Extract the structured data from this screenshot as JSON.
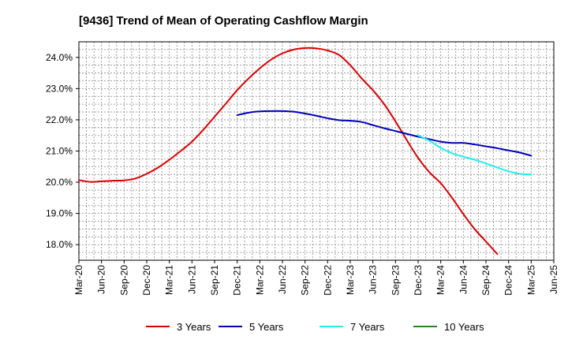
{
  "chart_data": {
    "type": "line",
    "title": "[9436]  Trend of Mean of Operating Cashflow Margin",
    "xlabel": "",
    "ylabel": "",
    "ylim": [
      17.5,
      24.5
    ],
    "yticks": [
      18.0,
      19.0,
      20.0,
      21.0,
      22.0,
      23.0,
      24.0
    ],
    "ytick_labels": [
      "18.0%",
      "19.0%",
      "20.0%",
      "21.0%",
      "22.0%",
      "23.0%",
      "24.0%"
    ],
    "x_categories": [
      "Mar-20",
      "Jun-20",
      "Sep-20",
      "Dec-20",
      "Mar-21",
      "Jun-21",
      "Sep-21",
      "Dec-21",
      "Mar-22",
      "Jun-22",
      "Sep-22",
      "Dec-22",
      "Mar-23",
      "Jun-23",
      "Sep-23",
      "Dec-23",
      "Mar-24",
      "Jun-24",
      "Sep-24",
      "Dec-24",
      "Mar-25",
      "Jun-25"
    ],
    "grid": true,
    "legend_position": "bottom",
    "series": [
      {
        "name": "3 Years",
        "color": "#dd0000",
        "x_index": [
          0,
          0.5,
          1,
          1.5,
          2,
          2.5,
          3,
          3.5,
          4,
          4.5,
          5,
          5.5,
          6,
          6.5,
          7,
          7.5,
          8,
          8.5,
          9,
          9.5,
          10,
          10.5,
          11,
          11.5,
          12,
          12.5,
          13,
          13.5,
          14,
          14.5,
          15,
          15.5,
          16,
          16.5,
          17,
          17.5,
          18,
          18.5,
          19,
          19.5,
          20
        ],
        "values": [
          20.07,
          20.01,
          20.03,
          20.05,
          20.06,
          20.12,
          20.27,
          20.47,
          20.72,
          21.0,
          21.3,
          21.68,
          22.1,
          22.52,
          22.95,
          23.32,
          23.65,
          23.93,
          24.13,
          24.25,
          24.3,
          24.29,
          24.22,
          24.08,
          23.75,
          23.33,
          22.95,
          22.5,
          21.95,
          21.35,
          20.78,
          20.32,
          19.97,
          19.5,
          18.98,
          18.5,
          18.1,
          17.7,
          null,
          null,
          null
        ],
        "display_values": [
          20.07,
          20.01,
          20.03,
          20.05,
          20.06,
          20.12,
          20.27,
          20.47,
          20.72,
          21.0,
          21.3,
          21.68,
          22.1,
          22.52,
          22.95,
          23.32,
          23.65,
          23.93,
          24.13,
          24.25,
          24.3,
          24.29,
          24.22,
          24.08,
          23.75,
          23.33,
          22.95,
          22.5,
          21.95,
          21.35,
          20.78,
          20.32,
          19.97,
          19.5,
          18.98,
          18.5,
          18.1,
          17.7
        ]
      },
      {
        "name": "5 Years",
        "color": "#0000bb",
        "x_index": [
          7,
          7.5,
          8,
          8.5,
          9,
          9.5,
          10,
          10.5,
          11,
          11.5,
          12,
          12.5,
          13,
          13.5,
          14,
          14.5,
          15,
          15.5,
          16,
          16.5,
          17,
          17.5,
          18,
          18.5,
          19,
          19.5,
          20
        ],
        "values": [
          22.15,
          22.23,
          22.27,
          22.28,
          22.28,
          22.26,
          22.2,
          22.13,
          22.05,
          21.99,
          21.97,
          21.93,
          21.83,
          21.73,
          21.64,
          21.55,
          21.46,
          21.38,
          21.3,
          21.26,
          21.26,
          21.21,
          21.15,
          21.09,
          21.02,
          20.95,
          20.85
        ]
      },
      {
        "name": "7 Years",
        "color": "#22eeee",
        "x_index": [
          15,
          15.5,
          16,
          16.5,
          17,
          17.5,
          18,
          18.5,
          19,
          19.5,
          20
        ],
        "values": [
          21.5,
          21.33,
          21.1,
          20.93,
          20.82,
          20.72,
          20.6,
          20.47,
          20.35,
          20.27,
          20.25
        ]
      },
      {
        "name": "10 Years",
        "color": "#228822",
        "x_index": [],
        "values": []
      }
    ]
  }
}
